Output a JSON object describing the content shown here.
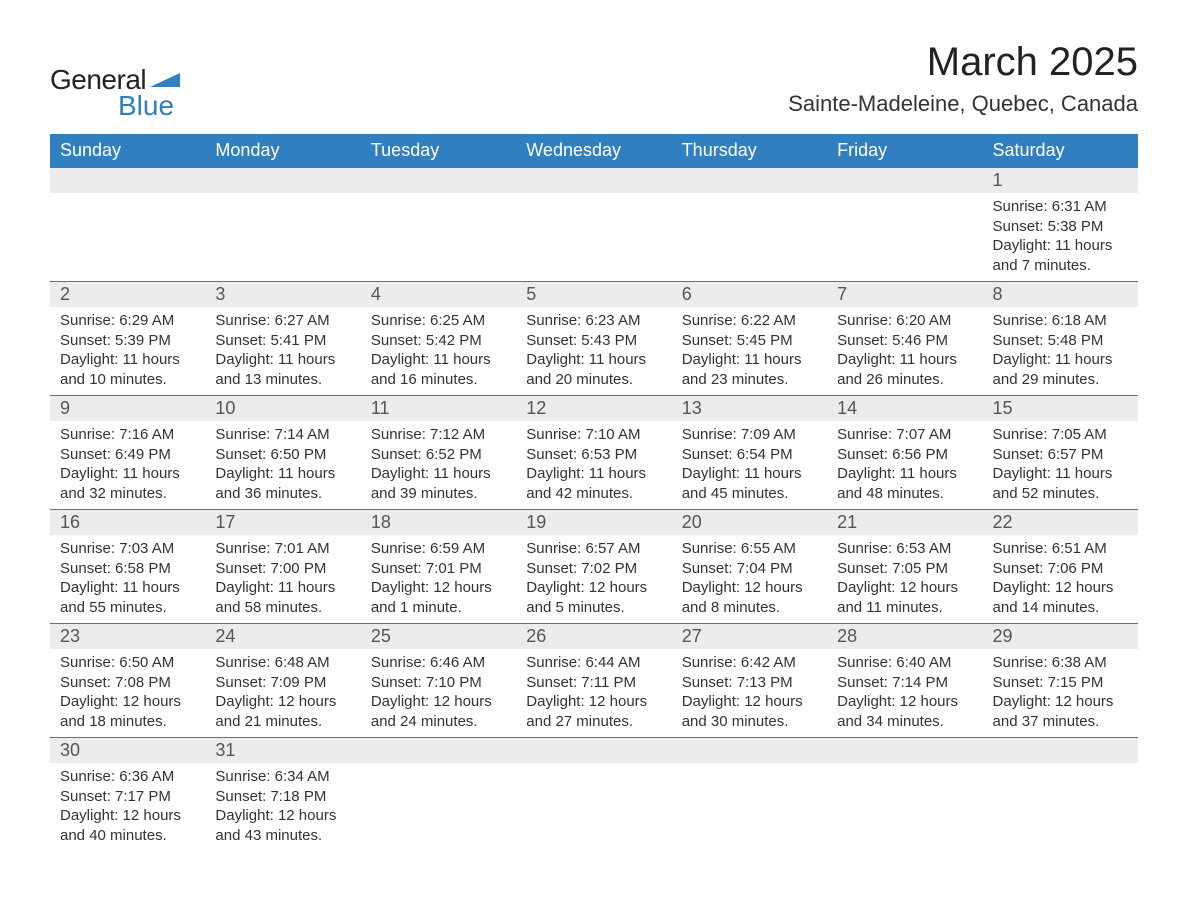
{
  "logo": {
    "general": "General",
    "blue": "Blue"
  },
  "title": {
    "month": "March 2025",
    "location": "Sainte-Madeleine, Quebec, Canada"
  },
  "colors": {
    "header_bg": "#2f7fc1",
    "header_text": "#ffffff",
    "daynum_bg": "#ececec",
    "daynum_text": "#555555",
    "body_text": "#333333",
    "row_border": "#2f7fc1",
    "page_bg": "#ffffff",
    "logo_blue": "#2f7fc1",
    "logo_text": "#222222"
  },
  "layout": {
    "type": "calendar-table",
    "columns": 7,
    "rows": 6,
    "th_fontsize": 18,
    "daynum_fontsize": 18,
    "body_fontsize": 15,
    "title_fontsize": 40,
    "location_fontsize": 22
  },
  "weekdays": [
    "Sunday",
    "Monday",
    "Tuesday",
    "Wednesday",
    "Thursday",
    "Friday",
    "Saturday"
  ],
  "weeks": [
    [
      {
        "day": "",
        "sunrise": "",
        "sunset": "",
        "daylight": ""
      },
      {
        "day": "",
        "sunrise": "",
        "sunset": "",
        "daylight": ""
      },
      {
        "day": "",
        "sunrise": "",
        "sunset": "",
        "daylight": ""
      },
      {
        "day": "",
        "sunrise": "",
        "sunset": "",
        "daylight": ""
      },
      {
        "day": "",
        "sunrise": "",
        "sunset": "",
        "daylight": ""
      },
      {
        "day": "",
        "sunrise": "",
        "sunset": "",
        "daylight": ""
      },
      {
        "day": "1",
        "sunrise": "Sunrise: 6:31 AM",
        "sunset": "Sunset: 5:38 PM",
        "daylight": "Daylight: 11 hours and 7 minutes."
      }
    ],
    [
      {
        "day": "2",
        "sunrise": "Sunrise: 6:29 AM",
        "sunset": "Sunset: 5:39 PM",
        "daylight": "Daylight: 11 hours and 10 minutes."
      },
      {
        "day": "3",
        "sunrise": "Sunrise: 6:27 AM",
        "sunset": "Sunset: 5:41 PM",
        "daylight": "Daylight: 11 hours and 13 minutes."
      },
      {
        "day": "4",
        "sunrise": "Sunrise: 6:25 AM",
        "sunset": "Sunset: 5:42 PM",
        "daylight": "Daylight: 11 hours and 16 minutes."
      },
      {
        "day": "5",
        "sunrise": "Sunrise: 6:23 AM",
        "sunset": "Sunset: 5:43 PM",
        "daylight": "Daylight: 11 hours and 20 minutes."
      },
      {
        "day": "6",
        "sunrise": "Sunrise: 6:22 AM",
        "sunset": "Sunset: 5:45 PM",
        "daylight": "Daylight: 11 hours and 23 minutes."
      },
      {
        "day": "7",
        "sunrise": "Sunrise: 6:20 AM",
        "sunset": "Sunset: 5:46 PM",
        "daylight": "Daylight: 11 hours and 26 minutes."
      },
      {
        "day": "8",
        "sunrise": "Sunrise: 6:18 AM",
        "sunset": "Sunset: 5:48 PM",
        "daylight": "Daylight: 11 hours and 29 minutes."
      }
    ],
    [
      {
        "day": "9",
        "sunrise": "Sunrise: 7:16 AM",
        "sunset": "Sunset: 6:49 PM",
        "daylight": "Daylight: 11 hours and 32 minutes."
      },
      {
        "day": "10",
        "sunrise": "Sunrise: 7:14 AM",
        "sunset": "Sunset: 6:50 PM",
        "daylight": "Daylight: 11 hours and 36 minutes."
      },
      {
        "day": "11",
        "sunrise": "Sunrise: 7:12 AM",
        "sunset": "Sunset: 6:52 PM",
        "daylight": "Daylight: 11 hours and 39 minutes."
      },
      {
        "day": "12",
        "sunrise": "Sunrise: 7:10 AM",
        "sunset": "Sunset: 6:53 PM",
        "daylight": "Daylight: 11 hours and 42 minutes."
      },
      {
        "day": "13",
        "sunrise": "Sunrise: 7:09 AM",
        "sunset": "Sunset: 6:54 PM",
        "daylight": "Daylight: 11 hours and 45 minutes."
      },
      {
        "day": "14",
        "sunrise": "Sunrise: 7:07 AM",
        "sunset": "Sunset: 6:56 PM",
        "daylight": "Daylight: 11 hours and 48 minutes."
      },
      {
        "day": "15",
        "sunrise": "Sunrise: 7:05 AM",
        "sunset": "Sunset: 6:57 PM",
        "daylight": "Daylight: 11 hours and 52 minutes."
      }
    ],
    [
      {
        "day": "16",
        "sunrise": "Sunrise: 7:03 AM",
        "sunset": "Sunset: 6:58 PM",
        "daylight": "Daylight: 11 hours and 55 minutes."
      },
      {
        "day": "17",
        "sunrise": "Sunrise: 7:01 AM",
        "sunset": "Sunset: 7:00 PM",
        "daylight": "Daylight: 11 hours and 58 minutes."
      },
      {
        "day": "18",
        "sunrise": "Sunrise: 6:59 AM",
        "sunset": "Sunset: 7:01 PM",
        "daylight": "Daylight: 12 hours and 1 minute."
      },
      {
        "day": "19",
        "sunrise": "Sunrise: 6:57 AM",
        "sunset": "Sunset: 7:02 PM",
        "daylight": "Daylight: 12 hours and 5 minutes."
      },
      {
        "day": "20",
        "sunrise": "Sunrise: 6:55 AM",
        "sunset": "Sunset: 7:04 PM",
        "daylight": "Daylight: 12 hours and 8 minutes."
      },
      {
        "day": "21",
        "sunrise": "Sunrise: 6:53 AM",
        "sunset": "Sunset: 7:05 PM",
        "daylight": "Daylight: 12 hours and 11 minutes."
      },
      {
        "day": "22",
        "sunrise": "Sunrise: 6:51 AM",
        "sunset": "Sunset: 7:06 PM",
        "daylight": "Daylight: 12 hours and 14 minutes."
      }
    ],
    [
      {
        "day": "23",
        "sunrise": "Sunrise: 6:50 AM",
        "sunset": "Sunset: 7:08 PM",
        "daylight": "Daylight: 12 hours and 18 minutes."
      },
      {
        "day": "24",
        "sunrise": "Sunrise: 6:48 AM",
        "sunset": "Sunset: 7:09 PM",
        "daylight": "Daylight: 12 hours and 21 minutes."
      },
      {
        "day": "25",
        "sunrise": "Sunrise: 6:46 AM",
        "sunset": "Sunset: 7:10 PM",
        "daylight": "Daylight: 12 hours and 24 minutes."
      },
      {
        "day": "26",
        "sunrise": "Sunrise: 6:44 AM",
        "sunset": "Sunset: 7:11 PM",
        "daylight": "Daylight: 12 hours and 27 minutes."
      },
      {
        "day": "27",
        "sunrise": "Sunrise: 6:42 AM",
        "sunset": "Sunset: 7:13 PM",
        "daylight": "Daylight: 12 hours and 30 minutes."
      },
      {
        "day": "28",
        "sunrise": "Sunrise: 6:40 AM",
        "sunset": "Sunset: 7:14 PM",
        "daylight": "Daylight: 12 hours and 34 minutes."
      },
      {
        "day": "29",
        "sunrise": "Sunrise: 6:38 AM",
        "sunset": "Sunset: 7:15 PM",
        "daylight": "Daylight: 12 hours and 37 minutes."
      }
    ],
    [
      {
        "day": "30",
        "sunrise": "Sunrise: 6:36 AM",
        "sunset": "Sunset: 7:17 PM",
        "daylight": "Daylight: 12 hours and 40 minutes."
      },
      {
        "day": "31",
        "sunrise": "Sunrise: 6:34 AM",
        "sunset": "Sunset: 7:18 PM",
        "daylight": "Daylight: 12 hours and 43 minutes."
      },
      {
        "day": "",
        "sunrise": "",
        "sunset": "",
        "daylight": ""
      },
      {
        "day": "",
        "sunrise": "",
        "sunset": "",
        "daylight": ""
      },
      {
        "day": "",
        "sunrise": "",
        "sunset": "",
        "daylight": ""
      },
      {
        "day": "",
        "sunrise": "",
        "sunset": "",
        "daylight": ""
      },
      {
        "day": "",
        "sunrise": "",
        "sunset": "",
        "daylight": ""
      }
    ]
  ]
}
